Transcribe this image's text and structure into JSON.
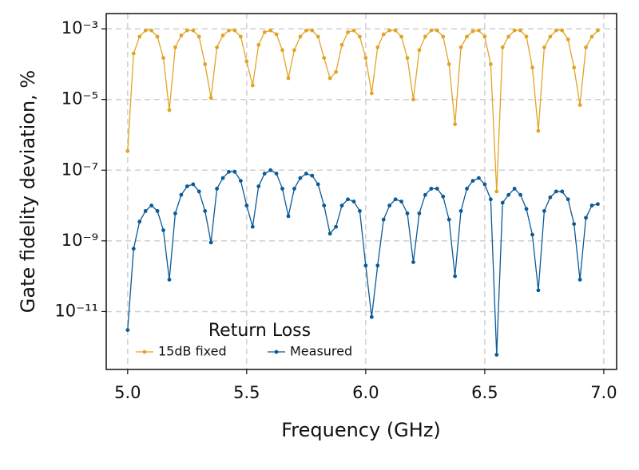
{
  "chart_data": {
    "type": "line",
    "xlabel": "Frequency (GHz)",
    "ylabel": "Gate fidelity deviation, %",
    "yscale": "log",
    "grid": true,
    "legend_title": "Return Loss",
    "legend_position": "lower left",
    "xlim": [
      4.91,
      7.054
    ],
    "ylim": [
      2.3e-13,
      0.0027
    ],
    "xticks": [
      {
        "value": 5,
        "label": "5.0"
      },
      5.5,
      {
        "value": 6,
        "label": "6.0"
      },
      6.5,
      {
        "value": 7,
        "label": "7.0"
      }
    ],
    "yticks": [
      {
        "value": 1e-11,
        "label": "10⁻¹¹"
      },
      {
        "value": 1e-09,
        "label": "10⁻⁹"
      },
      {
        "value": 1e-07,
        "label": "10⁻⁷"
      },
      {
        "value": 1e-05,
        "label": "10⁻⁵"
      },
      {
        "value": 0.001,
        "label": "10⁻³"
      }
    ],
    "x": [
      5,
      5.025,
      5.05,
      5.075,
      5.1,
      5.125,
      5.15,
      5.175,
      5.2,
      5.225,
      5.25,
      5.275,
      5.3,
      5.325,
      5.35,
      5.375,
      5.4,
      5.425,
      5.45,
      5.475,
      5.5,
      5.525,
      5.55,
      5.575,
      5.6,
      5.625,
      5.65,
      5.675,
      5.7,
      5.725,
      5.75,
      5.775,
      5.8,
      5.825,
      5.85,
      5.875,
      5.9,
      5.925,
      5.95,
      5.975,
      6,
      6.025,
      6.05,
      6.075,
      6.1,
      6.125,
      6.15,
      6.175,
      6.2,
      6.225,
      6.25,
      6.275,
      6.3,
      6.325,
      6.35,
      6.375,
      6.4,
      6.425,
      6.45,
      6.475,
      6.5,
      6.525,
      6.55,
      6.575,
      6.6,
      6.625,
      6.65,
      6.675,
      6.7,
      6.725,
      6.75,
      6.775,
      6.8,
      6.825,
      6.85,
      6.875,
      6.9,
      6.925,
      6.95,
      6.975
    ],
    "series": [
      {
        "name": "15dB fixed",
        "color": "#e0a526",
        "values": [
          3.5e-07,
          0.0002,
          0.0006,
          0.0009,
          0.0009,
          0.0006,
          0.00015,
          5e-06,
          0.0003,
          0.00065,
          0.0009,
          0.0009,
          0.0006,
          0.0001,
          1.1e-05,
          0.0003,
          0.00065,
          0.0009,
          0.0009,
          0.0006,
          0.00012,
          2.5e-05,
          0.00035,
          0.0008,
          0.0009,
          0.0007,
          0.00025,
          4e-05,
          0.00025,
          0.0006,
          0.0009,
          0.0009,
          0.0006,
          0.00015,
          4e-05,
          6e-05,
          0.00035,
          0.0008,
          0.0009,
          0.0006,
          0.00015,
          1.5e-05,
          0.0003,
          0.0007,
          0.0009,
          0.0009,
          0.0006,
          0.00015,
          1e-05,
          0.00025,
          0.0006,
          0.0009,
          0.0009,
          0.0006,
          0.0001,
          2e-06,
          0.0003,
          0.0006,
          0.00085,
          0.0009,
          0.0006,
          0.0001,
          2.5e-08,
          0.0003,
          0.0006,
          0.0009,
          0.0009,
          0.0006,
          8e-05,
          1.3e-06,
          0.0003,
          0.0006,
          0.0009,
          0.0009,
          0.0005,
          8e-05,
          7e-06,
          0.0003,
          0.0006,
          0.0009
        ]
      },
      {
        "name": "Measured",
        "color": "#0b5a96",
        "values": [
          3e-12,
          6e-10,
          3.5e-09,
          7e-09,
          1e-08,
          7e-09,
          2e-09,
          8e-11,
          6e-09,
          2e-08,
          3.5e-08,
          4e-08,
          2.5e-08,
          7e-09,
          9e-10,
          3e-08,
          6e-08,
          9e-08,
          9e-08,
          5e-08,
          1e-08,
          2.5e-09,
          3.5e-08,
          8e-08,
          1e-07,
          8e-08,
          3e-08,
          5e-09,
          3e-08,
          6e-08,
          8e-08,
          7e-08,
          4e-08,
          1e-08,
          1.6e-09,
          2.5e-09,
          1e-08,
          1.5e-08,
          1.3e-08,
          7e-09,
          2e-10,
          7e-12,
          2e-10,
          4e-09,
          1e-08,
          1.5e-08,
          1.3e-08,
          6e-09,
          2.5e-10,
          6e-09,
          2e-08,
          3e-08,
          3e-08,
          1.8e-08,
          4e-09,
          1e-10,
          7e-09,
          3e-08,
          5e-08,
          6e-08,
          4e-08,
          1.5e-08,
          6e-13,
          1.2e-08,
          2e-08,
          3e-08,
          2e-08,
          8e-09,
          1.5e-09,
          4e-11,
          7e-09,
          1.7e-08,
          2.5e-08,
          2.5e-08,
          1.5e-08,
          3e-09,
          8e-11,
          4.5e-09,
          1e-08,
          1.1e-08
        ]
      }
    ]
  }
}
